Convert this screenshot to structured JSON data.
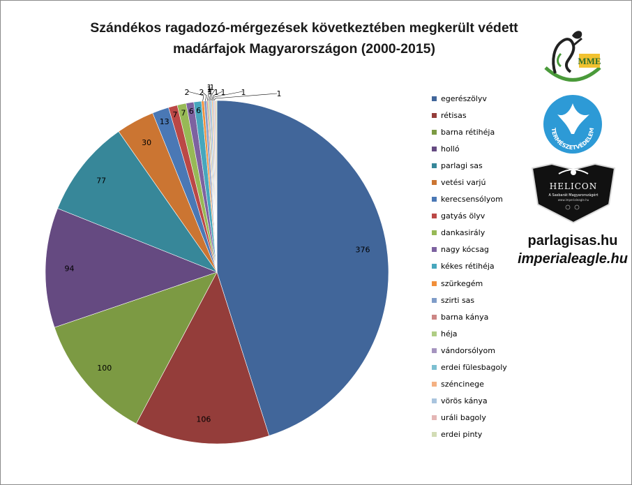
{
  "chart": {
    "title_line1": "Szándékos ragadozó-mérgezések következtében megkerült védett",
    "title_line2": "madárfajok Magyarországon (2000-2015)"
  },
  "chart_data": {
    "type": "pie",
    "title": "Szándékos ragadozó-mérgezések következtében megkerült védett madárfajok Magyarországon (2000-2015)",
    "legend_position": "right",
    "slices": [
      {
        "label": "egerészölyv",
        "value": 376,
        "color": "#41669a"
      },
      {
        "label": "rétisas",
        "value": 106,
        "color": "#943d3a"
      },
      {
        "label": "barna rétihéja",
        "value": 100,
        "color": "#7c9a43"
      },
      {
        "label": "holló",
        "value": 94,
        "color": "#654a81"
      },
      {
        "label": "parlagi sas",
        "value": 77,
        "color": "#378799"
      },
      {
        "label": "vetési varjú",
        "value": 30,
        "color": "#cb7532"
      },
      {
        "label": "kerecsensólyom",
        "value": 13,
        "color": "#4a78b5"
      },
      {
        "label": "gatyás ölyv",
        "value": 7,
        "color": "#bb4846"
      },
      {
        "label": "dankasirály",
        "value": 7,
        "color": "#97b956"
      },
      {
        "label": "nagy kócsag",
        "value": 6,
        "color": "#7d62a0"
      },
      {
        "label": "kékes rétihéja",
        "value": 6,
        "color": "#47a7bd"
      },
      {
        "label": "szürkegém",
        "value": 2,
        "color": "#f18f3a"
      },
      {
        "label": "szirti sas",
        "value": 2,
        "color": "#7f9cc8"
      },
      {
        "label": "barna kánya",
        "value": 1,
        "color": "#cc8685"
      },
      {
        "label": "héja",
        "value": 1,
        "color": "#afcd84"
      },
      {
        "label": "vándorsólyom",
        "value": 1,
        "color": "#a594bf"
      },
      {
        "label": "erdei fülesbagoly",
        "value": 1,
        "color": "#7dbfd1"
      },
      {
        "label": "széncinege",
        "value": 1,
        "color": "#f4b183"
      },
      {
        "label": "vörös kánya",
        "value": 1,
        "color": "#a9c4de"
      },
      {
        "label": "uráli bagoly",
        "value": 1,
        "color": "#e4b6b5"
      },
      {
        "label": "erdei pinty",
        "value": 1,
        "color": "#d2dcb5"
      }
    ]
  },
  "logos": {
    "mme_text": "MME",
    "termeszetvedelem_text": "TERMÉSZETVÉDELEM",
    "helicon_text": "HELICON",
    "helicon_subtext": "A Sasbarát Magyarországért",
    "helicon_url": "www.imperialeagle.hu"
  },
  "site": {
    "text1": "parlagisas.hu",
    "text2": "imperialeagle.hu"
  },
  "colors": {
    "border": "#8a8a8a",
    "mme_green": "#4a9a3a",
    "mme_yellow": "#f2c230",
    "termeszetvedelem_blue": "#2d9ad6"
  }
}
